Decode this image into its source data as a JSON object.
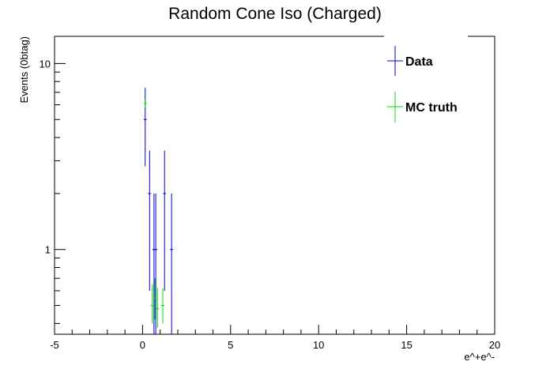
{
  "chart_data": {
    "type": "scatter",
    "title": "Random Cone Iso (Charged)",
    "xlabel": "e^+e^-",
    "ylabel": "Events (0btag)",
    "xlim": [
      -5,
      20
    ],
    "ylim": [
      0.35,
      14
    ],
    "yscale": "log",
    "grid": false,
    "legend_position": "top-right",
    "x_ticks": [
      -5,
      0,
      5,
      10,
      15,
      20
    ],
    "y_ticks": [
      1,
      10
    ],
    "series": [
      {
        "name": "Data",
        "color": "#0000cc",
        "points": [
          {
            "x": 0.15,
            "y": 5.0,
            "ylo": 2.8,
            "yhi": 7.4
          },
          {
            "x": 0.4,
            "y": 2.0,
            "ylo": 0.6,
            "yhi": 3.4
          },
          {
            "x": 0.65,
            "y": 1.0,
            "ylo": 0.3,
            "yhi": 2.0
          },
          {
            "x": 0.75,
            "y": 1.0,
            "ylo": 0.3,
            "yhi": 2.0
          },
          {
            "x": 1.25,
            "y": 2.0,
            "ylo": 0.6,
            "yhi": 3.4
          },
          {
            "x": 1.65,
            "y": 1.0,
            "ylo": 0.3,
            "yhi": 2.0
          }
        ]
      },
      {
        "name": "MC truth",
        "color": "#00dd00",
        "points": [
          {
            "x": 0.15,
            "y": 6.1,
            "ylo": 5.8,
            "yhi": 6.4
          },
          {
            "x": 0.55,
            "y": 0.5,
            "ylo": 0.4,
            "yhi": 0.65
          },
          {
            "x": 0.7,
            "y": 0.55,
            "ylo": 0.42,
            "yhi": 0.7
          },
          {
            "x": 0.85,
            "y": 0.48,
            "ylo": 0.38,
            "yhi": 0.62
          },
          {
            "x": 1.15,
            "y": 0.5,
            "ylo": 0.4,
            "yhi": 0.62
          }
        ]
      }
    ]
  }
}
